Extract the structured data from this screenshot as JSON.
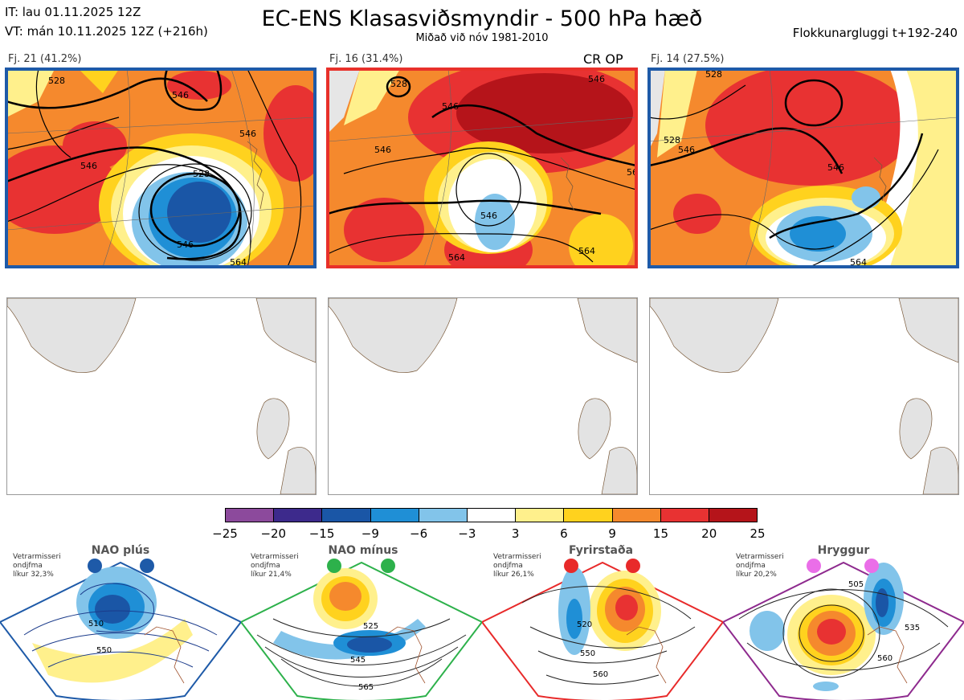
{
  "header": {
    "it_line": "IT: lau 01.11.2025 12Z",
    "vt_line": "VT: mán 10.11.2025 12Z  (+216h)",
    "title": "EC-ENS Klasasviðsmyndir - 500 hPa hæð",
    "subtitle": "Miðað við nóv 1981-2010",
    "window": "Flokkunargluggi t+192-240"
  },
  "clusters": [
    {
      "label": "Fj. 21 (41.2%)",
      "frame_color": "#1e5aa8",
      "contours": [
        "528",
        "546",
        "546",
        "546",
        "528",
        "546",
        "564"
      ]
    },
    {
      "label": "Fj. 16 (31.4%)",
      "frame_color": "#e8302a",
      "tag": "CR OP",
      "contours": [
        "528",
        "546",
        "546",
        "546",
        "546",
        "564",
        "564",
        "56"
      ]
    },
    {
      "label": "Fj. 14 (27.5%)",
      "frame_color": "#1e5aa8",
      "contours": [
        "528",
        "528",
        "546",
        "546",
        "564"
      ]
    }
  ],
  "chart_data": {
    "type": "heatmap",
    "title": "EC-ENS Klasasviðsmyndir - 500 hPa hæð",
    "colorbar": {
      "ticks": [
        "−25",
        "−20",
        "−15",
        "−9",
        "−6",
        "−3",
        "3",
        "6",
        "9",
        "15",
        "20",
        "25"
      ],
      "colors": [
        "#8c4a9c",
        "#3d2a8c",
        "#1a56a6",
        "#1f8fd6",
        "#82c4ea",
        "#ffffff",
        "#fff08c",
        "#ffd21e",
        "#f5892d",
        "#e83232",
        "#b5141a"
      ]
    },
    "regimes": [
      {
        "name": "NAO plús",
        "note": [
          "Vetrarmisseri",
          "ondjfma",
          "líkur 32,3%"
        ],
        "color": "#1e5aa8",
        "labels": [
          "510",
          "550"
        ]
      },
      {
        "name": "NAO mínus",
        "note": [
          "Vetrarmisseri",
          "ondjfma",
          "líkur 21,4%"
        ],
        "color": "#2db14b",
        "labels": [
          "525",
          "545",
          "565"
        ]
      },
      {
        "name": "Fyrirstaða",
        "note": [
          "Vetrarmisseri",
          "ondjfma",
          "líkur 26,1%"
        ],
        "color": "#e82a2a",
        "labels": [
          "520",
          "550",
          "560"
        ]
      },
      {
        "name": "Hryggur",
        "note": [
          "Vetrarmisseri",
          "ondjfma",
          "líkur 20,2%"
        ],
        "color": "#ea6ee8",
        "labels": [
          "505",
          "535",
          "560"
        ]
      }
    ]
  }
}
